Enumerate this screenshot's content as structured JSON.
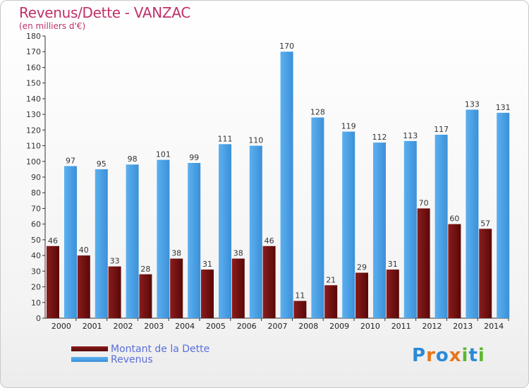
{
  "title": "Revenus/Dette - VANZAC",
  "subtitle": "(en milliers d'€)",
  "colors": {
    "dette": "#6b0f0f",
    "revenus": "#4aa3e8",
    "title": "#c0306a",
    "legend_text": "#5a6fd8"
  },
  "logo": {
    "letters": [
      "P",
      "r",
      "o",
      "x",
      "i",
      "t",
      "i"
    ],
    "colors": [
      "#2a8ad8",
      "#e8751a",
      "#2a8ad8",
      "#e8751a",
      "#5cb82e",
      "#2a8ad8",
      "#5cb82e"
    ]
  },
  "chart_data": {
    "type": "bar",
    "title": "Revenus/Dette - VANZAC",
    "subtitle": "(en milliers d'€)",
    "categories": [
      "2000",
      "2001",
      "2002",
      "2003",
      "2004",
      "2005",
      "2006",
      "2007",
      "2008",
      "2009",
      "2010",
      "2011",
      "2012",
      "2013",
      "2014"
    ],
    "series": [
      {
        "name": "Montant de la Dette",
        "values": [
          46,
          40,
          33,
          28,
          38,
          31,
          38,
          46,
          11,
          21,
          29,
          31,
          70,
          60,
          57
        ]
      },
      {
        "name": "Revenus",
        "values": [
          97,
          95,
          98,
          101,
          99,
          111,
          110,
          170,
          128,
          119,
          112,
          113,
          117,
          133,
          131
        ]
      }
    ],
    "ylim": [
      0,
      180
    ],
    "yticks": [
      0,
      10,
      20,
      30,
      40,
      50,
      60,
      70,
      80,
      90,
      100,
      110,
      120,
      130,
      140,
      150,
      160,
      170,
      180
    ],
    "grid": false,
    "legend_position": "bottom-left"
  }
}
